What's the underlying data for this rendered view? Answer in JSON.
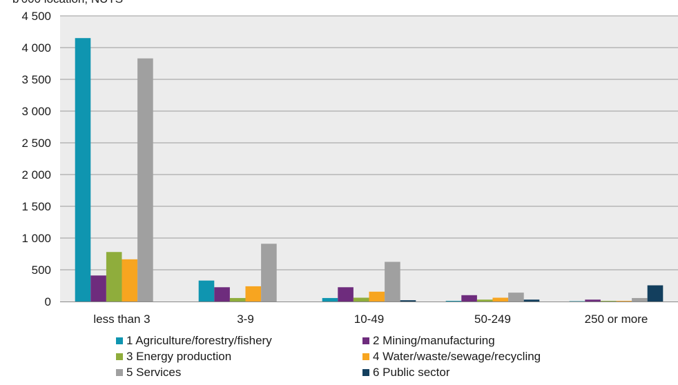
{
  "chart_data": {
    "type": "bar",
    "title_partial": "b'000 location, NUTS",
    "categories": [
      "less than 3",
      "3-9",
      "10-49",
      "50-249",
      "250 or more"
    ],
    "ylim": [
      0,
      4500
    ],
    "yticks": [
      0,
      500,
      1000,
      1500,
      2000,
      2500,
      3000,
      3500,
      4000,
      4500
    ],
    "ytick_labels": [
      "0",
      "500",
      "1 000",
      "1 500",
      "2 000",
      "2 500",
      "3 000",
      "3 500",
      "4 000",
      "4 500"
    ],
    "grid": true,
    "legend_position": "bottom",
    "series": [
      {
        "name": "1 Agriculture/forestry/fishery",
        "color": "#0f95b0",
        "values": [
          4150,
          330,
          55,
          10,
          5
        ]
      },
      {
        "name": "2 Mining/manufacturing",
        "color": "#6e2c7d",
        "values": [
          410,
          225,
          225,
          100,
          30
        ]
      },
      {
        "name": "3 Energy production",
        "color": "#8fad3c",
        "values": [
          780,
          55,
          60,
          30,
          10
        ]
      },
      {
        "name": "4 Water/waste/sewage/recycling",
        "color": "#f7a520",
        "values": [
          665,
          240,
          155,
          60,
          10
        ]
      },
      {
        "name": "5 Services",
        "color": "#a0a0a0",
        "values": [
          3830,
          910,
          625,
          140,
          55
        ]
      },
      {
        "name": "6 Public sector",
        "color": "#133f5e",
        "values": [
          0,
          0,
          20,
          30,
          255
        ]
      }
    ]
  }
}
